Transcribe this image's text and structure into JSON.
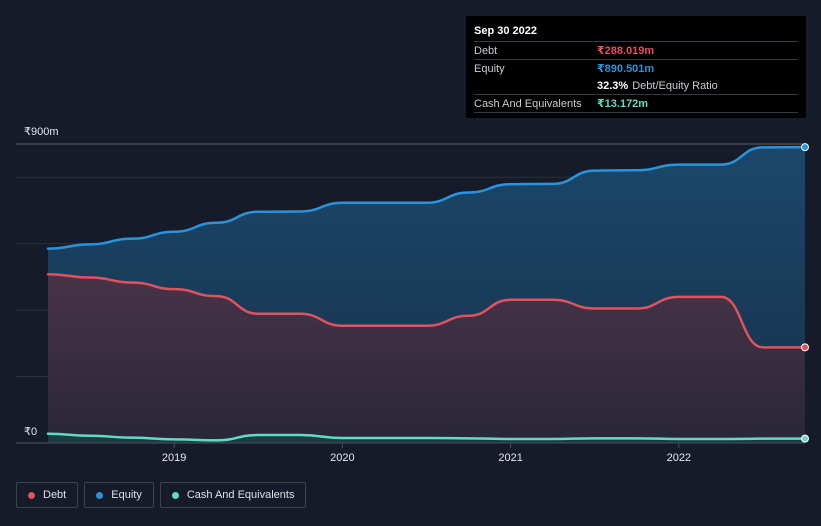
{
  "tooltip": {
    "date": "Sep 30 2022",
    "debt_label": "Debt",
    "debt_value": "₹288.019m",
    "equity_label": "Equity",
    "equity_value": "₹890.501m",
    "ratio_value": "32.3%",
    "ratio_label": "Debt/Equity Ratio",
    "cash_label": "Cash And Equivalents",
    "cash_value": "₹13.172m"
  },
  "legend": {
    "debt": "Debt",
    "equity": "Equity",
    "cash": "Cash And Equivalents"
  },
  "colors": {
    "debt": "#e0525f",
    "equity": "#2a93dc",
    "cash": "#5fdcc5",
    "background": "#151b28"
  },
  "chart_data": {
    "type": "area",
    "title": "",
    "xlabel": "",
    "ylabel": "",
    "y_top_label": "₹900m",
    "y_bottom_label": "₹0",
    "ylim": [
      0,
      900
    ],
    "xlim": [
      2018.25,
      2022.75
    ],
    "x_ticks": [
      2019,
      2020,
      2021,
      2022
    ],
    "x_tick_labels": [
      "2019",
      "2020",
      "2021",
      "2022"
    ],
    "series": [
      {
        "name": "Equity",
        "key": "equity",
        "x": [
          2018.25,
          2018.5,
          2018.75,
          2019.0,
          2019.25,
          2019.5,
          2019.75,
          2020.0,
          2020.25,
          2020.5,
          2020.75,
          2021.0,
          2021.25,
          2021.5,
          2021.75,
          2022.0,
          2022.25,
          2022.5,
          2022.75
        ],
        "values": [
          585,
          598,
          615,
          636,
          663,
          696,
          697,
          723,
          723,
          723,
          754,
          779,
          780,
          820,
          821,
          838,
          838,
          890,
          890.501
        ]
      },
      {
        "name": "Debt",
        "key": "debt",
        "x": [
          2018.25,
          2018.5,
          2018.75,
          2019.0,
          2019.25,
          2019.5,
          2019.75,
          2020.0,
          2020.25,
          2020.5,
          2020.75,
          2021.0,
          2021.25,
          2021.5,
          2021.75,
          2022.0,
          2022.25,
          2022.5,
          2022.75
        ],
        "values": [
          508,
          498,
          483,
          463,
          442,
          389,
          389,
          353,
          353,
          353,
          383,
          431,
          431,
          405,
          405,
          440,
          440,
          288,
          288.019
        ]
      },
      {
        "name": "Cash And Equivalents",
        "key": "cash",
        "x": [
          2018.25,
          2018.5,
          2018.75,
          2019.0,
          2019.25,
          2019.5,
          2019.75,
          2020.0,
          2020.25,
          2020.5,
          2020.75,
          2021.0,
          2021.25,
          2021.5,
          2021.75,
          2022.0,
          2022.25,
          2022.5,
          2022.75
        ],
        "values": [
          28,
          22,
          16,
          11,
          8,
          24,
          24,
          15,
          15,
          15,
          14,
          12,
          12,
          14,
          14,
          12,
          12,
          13,
          13.172
        ]
      }
    ]
  }
}
